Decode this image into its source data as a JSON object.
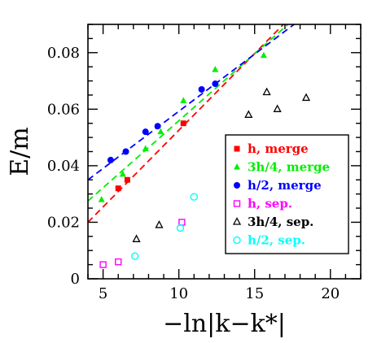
{
  "chart_data": {
    "type": "scatter",
    "xlabel": "−ln|k−k*|",
    "ylabel": "E/m",
    "xlim": [
      4,
      22
    ],
    "ylim": [
      0,
      0.09
    ],
    "xticks": [
      5,
      10,
      15,
      20
    ],
    "yticks": [
      0,
      0.02,
      0.04,
      0.06,
      0.08
    ],
    "xtick_labels": [
      "5",
      "10",
      "15",
      "20"
    ],
    "ytick_labels": [
      "0",
      "0.02",
      "0.04",
      "0.06",
      "0.08"
    ],
    "grid": false,
    "legend_position": "lower-right",
    "series": [
      {
        "name": "h, merge",
        "color": "#ff0000",
        "marker": "filled-square",
        "x": [
          6.0,
          6.6,
          10.3
        ],
        "y": [
          0.032,
          0.035,
          0.055
        ]
      },
      {
        "name": "3h/4, merge",
        "color": "#00ee00",
        "marker": "filled-triangle",
        "x": [
          4.9,
          6.3,
          7.8,
          8.8,
          10.3,
          12.4,
          15.6
        ],
        "y": [
          0.028,
          0.037,
          0.046,
          0.052,
          0.063,
          0.074,
          0.079
        ]
      },
      {
        "name": "h/2, merge",
        "color": "#0000ff",
        "marker": "filled-circle",
        "x": [
          5.5,
          6.5,
          7.8,
          8.6,
          11.5,
          12.4
        ],
        "y": [
          0.042,
          0.045,
          0.052,
          0.054,
          0.067,
          0.069
        ]
      },
      {
        "name": "h, sep.",
        "color": "#ff00ff",
        "marker": "open-square",
        "x": [
          5.0,
          6.0,
          10.2
        ],
        "y": [
          0.005,
          0.006,
          0.02
        ]
      },
      {
        "name": "3h/4, sep.",
        "color": "#000000",
        "marker": "open-triangle",
        "x": [
          7.2,
          8.7,
          14.6,
          15.8,
          16.5,
          18.4
        ],
        "y": [
          0.014,
          0.019,
          0.058,
          0.066,
          0.06,
          0.064
        ]
      },
      {
        "name": "h/2, sep.",
        "color": "#00ffff",
        "marker": "open-circle",
        "x": [
          7.1,
          10.1,
          11.0
        ],
        "y": [
          0.008,
          0.018,
          0.029
        ]
      }
    ],
    "fit_lines": [
      {
        "color": "#ff0000",
        "x": [
          4,
          16.9
        ],
        "y": [
          0.02,
          0.09
        ]
      },
      {
        "color": "#00ee00",
        "x": [
          4,
          17.2
        ],
        "y": [
          0.0275,
          0.09
        ]
      },
      {
        "color": "#0000ff",
        "x": [
          4,
          17.6
        ],
        "y": [
          0.035,
          0.09
        ]
      }
    ]
  }
}
